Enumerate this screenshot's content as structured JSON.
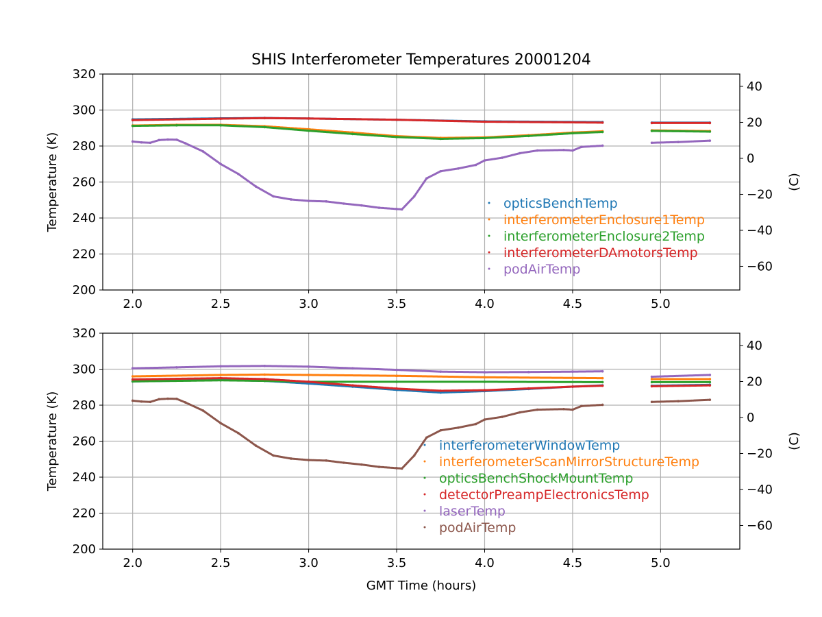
{
  "chart_data": {
    "title": "SHIS Interferometer Temperatures 20001204",
    "xlabel": "GMT Time (hours)",
    "colors": {
      "blue": "#1f77b4",
      "orange": "#ff7f0e",
      "green": "#2ca02c",
      "red": "#d62728",
      "purple": "#9467bd",
      "brown": "#8c564b",
      "grid": "#b0b0b0"
    },
    "panels": [
      {
        "type": "scatter",
        "ylabel": "Temperature (K)",
        "y2label": "(C)",
        "xlim": [
          1.83,
          5.45
        ],
        "ylim": [
          200,
          320
        ],
        "y2lim": [
          -73.15,
          46.85
        ],
        "xticks": [
          "2.0",
          "2.5",
          "3.0",
          "3.5",
          "4.0",
          "4.5",
          "5.0"
        ],
        "yticks": [
          "200",
          "220",
          "240",
          "260",
          "280",
          "300",
          "320"
        ],
        "y2ticks": [
          "−60",
          "−40",
          "−20",
          "0",
          "20",
          "40"
        ],
        "legend_location": "center-right",
        "series": [
          {
            "name": "opticsBenchTemp",
            "color": "#1f77b4",
            "segments": [
              [
                [
                  2.0,
                  294.8
                ],
                [
                  2.5,
                  295.4
                ],
                [
                  2.75,
                  295.6
                ],
                [
                  3.0,
                  295.3
                ],
                [
                  3.5,
                  294.6
                ],
                [
                  4.0,
                  293.7
                ],
                [
                  4.67,
                  293.3
                ]
              ],
              [
                [
                  4.95,
                  293.0
                ],
                [
                  5.28,
                  293.0
                ]
              ]
            ]
          },
          {
            "name": "interferometerEnclosure1Temp",
            "color": "#ff7f0e",
            "segments": [
              [
                [
                  2.0,
                  291.4
                ],
                [
                  2.25,
                  291.8
                ],
                [
                  2.5,
                  291.8
                ],
                [
                  2.75,
                  291.0
                ],
                [
                  3.0,
                  289.3
                ],
                [
                  3.25,
                  287.5
                ],
                [
                  3.5,
                  285.5
                ],
                [
                  3.75,
                  284.5
                ],
                [
                  4.0,
                  284.8
                ],
                [
                  4.25,
                  286.0
                ],
                [
                  4.5,
                  287.5
                ],
                [
                  4.67,
                  288.2
                ]
              ],
              [
                [
                  4.95,
                  288.7
                ],
                [
                  5.28,
                  288.3
                ]
              ]
            ]
          },
          {
            "name": "interferometerEnclosure2Temp",
            "color": "#2ca02c",
            "segments": [
              [
                [
                  2.0,
                  291.2
                ],
                [
                  2.25,
                  291.5
                ],
                [
                  2.5,
                  291.5
                ],
                [
                  2.75,
                  290.5
                ],
                [
                  3.0,
                  288.5
                ],
                [
                  3.25,
                  286.7
                ],
                [
                  3.5,
                  285.0
                ],
                [
                  3.75,
                  284.0
                ],
                [
                  4.0,
                  284.4
                ],
                [
                  4.25,
                  285.6
                ],
                [
                  4.5,
                  287.1
                ],
                [
                  4.67,
                  287.8
                ]
              ],
              [
                [
                  4.95,
                  288.4
                ],
                [
                  5.28,
                  288.0
                ]
              ]
            ]
          },
          {
            "name": "interferometerDAmotorsTemp",
            "color": "#d62728",
            "segments": [
              [
                [
                  2.0,
                  294.4
                ],
                [
                  2.5,
                  295.2
                ],
                [
                  2.75,
                  295.5
                ],
                [
                  3.0,
                  295.3
                ],
                [
                  3.5,
                  294.6
                ],
                [
                  4.0,
                  293.5
                ],
                [
                  4.67,
                  293.0
                ]
              ],
              [
                [
                  4.95,
                  292.8
                ],
                [
                  5.28,
                  292.8
                ]
              ]
            ]
          },
          {
            "name": "podAirTemp",
            "color": "#9467bd",
            "segments": [
              [
                [
                  2.0,
                  282.5
                ],
                [
                  2.05,
                  282.0
                ],
                [
                  2.1,
                  281.8
                ],
                [
                  2.15,
                  283.3
                ],
                [
                  2.2,
                  283.6
                ],
                [
                  2.25,
                  283.5
                ],
                [
                  2.3,
                  281.5
                ],
                [
                  2.4,
                  277.0
                ],
                [
                  2.5,
                  270.0
                ],
                [
                  2.6,
                  264.5
                ],
                [
                  2.7,
                  257.5
                ],
                [
                  2.8,
                  252.0
                ],
                [
                  2.9,
                  250.3
                ],
                [
                  3.0,
                  249.5
                ],
                [
                  3.1,
                  249.2
                ],
                [
                  3.2,
                  248.0
                ],
                [
                  3.3,
                  247.0
                ],
                [
                  3.4,
                  245.7
                ],
                [
                  3.5,
                  245.0
                ],
                [
                  3.53,
                  244.8
                ],
                [
                  3.6,
                  252.0
                ],
                [
                  3.67,
                  262.0
                ],
                [
                  3.75,
                  266.0
                ],
                [
                  3.85,
                  267.5
                ],
                [
                  3.95,
                  269.5
                ],
                [
                  4.0,
                  272.0
                ],
                [
                  4.1,
                  273.5
                ],
                [
                  4.2,
                  276.0
                ],
                [
                  4.3,
                  277.5
                ],
                [
                  4.45,
                  277.8
                ],
                [
                  4.5,
                  277.5
                ],
                [
                  4.55,
                  279.5
                ],
                [
                  4.67,
                  280.2
                ]
              ],
              [
                [
                  4.95,
                  281.8
                ],
                [
                  5.1,
                  282.2
                ],
                [
                  5.28,
                  283.0
                ]
              ]
            ]
          }
        ]
      },
      {
        "type": "scatter",
        "ylabel": "Temperature (K)",
        "y2label": "(C)",
        "xlim": [
          1.83,
          5.45
        ],
        "ylim": [
          200,
          320
        ],
        "y2lim": [
          -73.15,
          46.85
        ],
        "xticks": [
          "2.0",
          "2.5",
          "3.0",
          "3.5",
          "4.0",
          "4.5",
          "5.0"
        ],
        "yticks": [
          "200",
          "220",
          "240",
          "260",
          "280",
          "300",
          "320"
        ],
        "y2ticks": [
          "−60",
          "−40",
          "−20",
          "0",
          "20",
          "40"
        ],
        "legend_location": "center-right",
        "series": [
          {
            "name": "interferometerWindowTemp",
            "color": "#1f77b4",
            "segments": [
              [
                [
                  2.0,
                  293.2
                ],
                [
                  2.5,
                  294.0
                ],
                [
                  2.75,
                  293.5
                ],
                [
                  3.0,
                  292.0
                ],
                [
                  3.25,
                  290.3
                ],
                [
                  3.5,
                  288.5
                ],
                [
                  3.75,
                  287.0
                ],
                [
                  4.0,
                  287.8
                ],
                [
                  4.25,
                  289.0
                ],
                [
                  4.5,
                  290.3
                ],
                [
                  4.67,
                  291.0
                ]
              ],
              [
                [
                  4.95,
                  290.8
                ],
                [
                  5.28,
                  291.3
                ]
              ]
            ]
          },
          {
            "name": "interferometerScanMirrorStructureTemp",
            "color": "#ff7f0e",
            "segments": [
              [
                [
                  2.0,
                  296.0
                ],
                [
                  2.5,
                  296.8
                ],
                [
                  2.75,
                  297.0
                ],
                [
                  3.0,
                  296.8
                ],
                [
                  3.5,
                  296.3
                ],
                [
                  4.0,
                  295.5
                ],
                [
                  4.67,
                  295.0
                ]
              ],
              [
                [
                  4.95,
                  294.5
                ],
                [
                  5.28,
                  294.5
                ]
              ]
            ]
          },
          {
            "name": "opticsBenchShockMountTemp",
            "color": "#2ca02c",
            "segments": [
              [
                [
                  2.0,
                  293.2
                ],
                [
                  2.5,
                  293.8
                ],
                [
                  2.75,
                  293.5
                ],
                [
                  3.0,
                  293.0
                ],
                [
                  3.5,
                  293.0
                ],
                [
                  4.0,
                  293.0
                ],
                [
                  4.67,
                  292.8
                ]
              ],
              [
                [
                  4.95,
                  292.8
                ],
                [
                  5.28,
                  292.8
                ]
              ]
            ]
          },
          {
            "name": "detectorPreampElectronicsTemp",
            "color": "#d62728",
            "segments": [
              [
                [
                  2.0,
                  294.3
                ],
                [
                  2.5,
                  295.0
                ],
                [
                  2.75,
                  294.5
                ],
                [
                  3.0,
                  293.0
                ],
                [
                  3.25,
                  291.0
                ],
                [
                  3.5,
                  289.2
                ],
                [
                  3.75,
                  288.0
                ],
                [
                  4.0,
                  288.3
                ],
                [
                  4.25,
                  289.3
                ],
                [
                  4.5,
                  290.3
                ],
                [
                  4.67,
                  290.8
                ]
              ],
              [
                [
                  4.95,
                  290.5
                ],
                [
                  5.28,
                  291.0
                ]
              ]
            ]
          },
          {
            "name": "laserTemp",
            "color": "#9467bd",
            "segments": [
              [
                [
                  2.0,
                  300.5
                ],
                [
                  2.25,
                  301.0
                ],
                [
                  2.5,
                  301.6
                ],
                [
                  2.75,
                  301.8
                ],
                [
                  3.0,
                  301.4
                ],
                [
                  3.25,
                  300.5
                ],
                [
                  3.5,
                  299.6
                ],
                [
                  3.75,
                  298.6
                ],
                [
                  4.0,
                  298.3
                ],
                [
                  4.25,
                  298.4
                ],
                [
                  4.5,
                  298.6
                ],
                [
                  4.67,
                  298.8
                ]
              ],
              [
                [
                  4.95,
                  295.8
                ],
                [
                  5.28,
                  296.8
                ]
              ]
            ]
          },
          {
            "name": "podAirTemp",
            "color": "#8c564b",
            "segments": [
              [
                [
                  2.0,
                  282.5
                ],
                [
                  2.05,
                  282.0
                ],
                [
                  2.1,
                  281.8
                ],
                [
                  2.15,
                  283.3
                ],
                [
                  2.2,
                  283.6
                ],
                [
                  2.25,
                  283.5
                ],
                [
                  2.3,
                  281.5
                ],
                [
                  2.4,
                  277.0
                ],
                [
                  2.5,
                  270.0
                ],
                [
                  2.6,
                  264.5
                ],
                [
                  2.7,
                  257.5
                ],
                [
                  2.8,
                  252.0
                ],
                [
                  2.9,
                  250.3
                ],
                [
                  3.0,
                  249.5
                ],
                [
                  3.1,
                  249.2
                ],
                [
                  3.2,
                  248.0
                ],
                [
                  3.3,
                  247.0
                ],
                [
                  3.4,
                  245.7
                ],
                [
                  3.5,
                  245.0
                ],
                [
                  3.53,
                  244.8
                ],
                [
                  3.6,
                  252.0
                ],
                [
                  3.67,
                  262.0
                ],
                [
                  3.75,
                  266.0
                ],
                [
                  3.85,
                  267.5
                ],
                [
                  3.95,
                  269.5
                ],
                [
                  4.0,
                  272.0
                ],
                [
                  4.1,
                  273.5
                ],
                [
                  4.2,
                  276.0
                ],
                [
                  4.3,
                  277.5
                ],
                [
                  4.45,
                  277.8
                ],
                [
                  4.5,
                  277.5
                ],
                [
                  4.55,
                  279.5
                ],
                [
                  4.67,
                  280.2
                ]
              ],
              [
                [
                  4.95,
                  281.8
                ],
                [
                  5.1,
                  282.2
                ],
                [
                  5.28,
                  283.0
                ]
              ]
            ]
          }
        ]
      }
    ]
  }
}
